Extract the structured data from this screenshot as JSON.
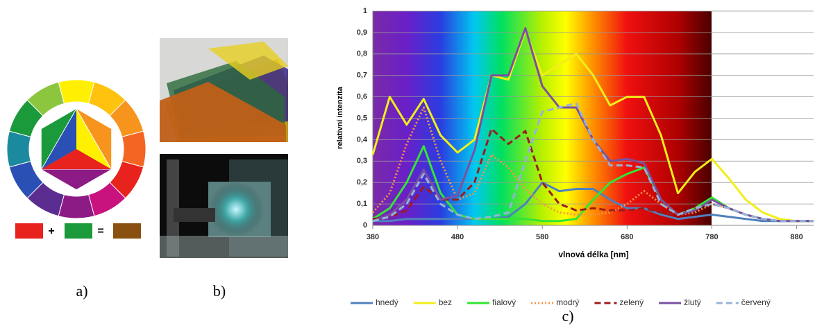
{
  "panels": {
    "a": {
      "label": "a)",
      "plus": "+",
      "equals": "="
    },
    "b": {
      "label": "b)"
    }
  },
  "chart_data": {
    "type": "line",
    "caption": "c)",
    "x_label": "vlnová délka [nm]",
    "y_label": "relativní intenzita",
    "x": [
      380,
      400,
      420,
      440,
      460,
      480,
      500,
      520,
      540,
      560,
      580,
      600,
      620,
      640,
      660,
      680,
      700,
      720,
      740,
      760,
      780,
      800,
      820,
      840,
      860,
      880,
      900
    ],
    "xlim": [
      380,
      900
    ],
    "xticks": [
      380,
      480,
      580,
      680,
      780,
      880
    ],
    "ylim": [
      0,
      1
    ],
    "yticks": [
      0,
      {
        "value": 0.1,
        "label": "0,1"
      },
      {
        "value": 0.2,
        "label": "0,2"
      },
      {
        "value": 0.3,
        "label": "0,3"
      },
      {
        "value": 0.4,
        "label": "0,4"
      },
      {
        "value": 0.5,
        "label": "0,5"
      },
      {
        "value": 0.6,
        "label": "0,6"
      },
      {
        "value": 0.7,
        "label": "0,7"
      },
      {
        "value": 0.8,
        "label": "0,8"
      },
      {
        "value": 0.9,
        "label": "0,9"
      },
      1
    ],
    "grid": true,
    "legend": "bottom",
    "series": [
      {
        "name": "hnedý",
        "color": "#4f81bd",
        "dash": "solid",
        "values": [
          0.02,
          0.02,
          0.03,
          0.03,
          0.03,
          0.03,
          0.03,
          0.03,
          0.04,
          0.1,
          0.2,
          0.16,
          0.17,
          0.17,
          0.12,
          0.08,
          0.08,
          0.05,
          0.03,
          0.04,
          0.05,
          0.04,
          0.03,
          0.02,
          0.02,
          0.02,
          0.02
        ]
      },
      {
        "name": "bez",
        "color": "#f2ee1a",
        "dash": "solid",
        "values": [
          0.33,
          0.6,
          0.47,
          0.59,
          0.42,
          0.34,
          0.4,
          0.7,
          0.68,
          0.91,
          0.7,
          0.75,
          0.8,
          0.7,
          0.56,
          0.6,
          0.6,
          0.42,
          0.15,
          0.25,
          0.31,
          0.22,
          0.12,
          0.06,
          0.03,
          0.02,
          0.02
        ]
      },
      {
        "name": "fialový",
        "color": "#33e633",
        "dash": "solid",
        "values": [
          0.03,
          0.08,
          0.2,
          0.37,
          0.15,
          0.05,
          0.03,
          0.03,
          0.03,
          0.03,
          0.02,
          0.02,
          0.03,
          0.12,
          0.2,
          0.24,
          0.27,
          0.12,
          0.05,
          0.08,
          0.13,
          0.08,
          0.05,
          0.03,
          0.02,
          0.02,
          0.02
        ]
      },
      {
        "name": "modrý",
        "color": "#f79646",
        "dash": "dotted",
        "values": [
          0.06,
          0.15,
          0.38,
          0.55,
          0.3,
          0.12,
          0.15,
          0.33,
          0.27,
          0.17,
          0.1,
          0.06,
          0.05,
          0.05,
          0.06,
          0.1,
          0.16,
          0.1,
          0.05,
          0.06,
          0.1,
          0.08,
          0.05,
          0.03,
          0.02,
          0.02,
          0.02
        ]
      },
      {
        "name": "zelený",
        "color": "#9b1c1c",
        "dash": "dashed",
        "values": [
          0.03,
          0.04,
          0.07,
          0.18,
          0.12,
          0.12,
          0.2,
          0.45,
          0.38,
          0.44,
          0.2,
          0.1,
          0.07,
          0.08,
          0.07,
          0.07,
          0.08,
          0.06,
          0.05,
          0.08,
          0.1,
          0.08,
          0.05,
          0.03,
          0.02,
          0.02,
          0.02
        ]
      },
      {
        "name": "žlutý",
        "color": "#7a50a0",
        "dash": "solid",
        "values": [
          0.02,
          0.05,
          0.12,
          0.26,
          0.12,
          0.14,
          0.35,
          0.7,
          0.7,
          0.92,
          0.65,
          0.55,
          0.55,
          0.4,
          0.3,
          0.31,
          0.29,
          0.12,
          0.05,
          0.07,
          0.12,
          0.08,
          0.05,
          0.03,
          0.02,
          0.02,
          0.02
        ]
      },
      {
        "name": "červený",
        "color": "#95b3d7",
        "dash": "dashed",
        "values": [
          0.02,
          0.04,
          0.1,
          0.24,
          0.1,
          0.05,
          0.03,
          0.04,
          0.06,
          0.3,
          0.53,
          0.55,
          0.57,
          0.4,
          0.28,
          0.28,
          0.27,
          0.1,
          0.05,
          0.08,
          0.1,
          0.08,
          0.05,
          0.03,
          0.02,
          0.02,
          0.02
        ]
      }
    ]
  }
}
